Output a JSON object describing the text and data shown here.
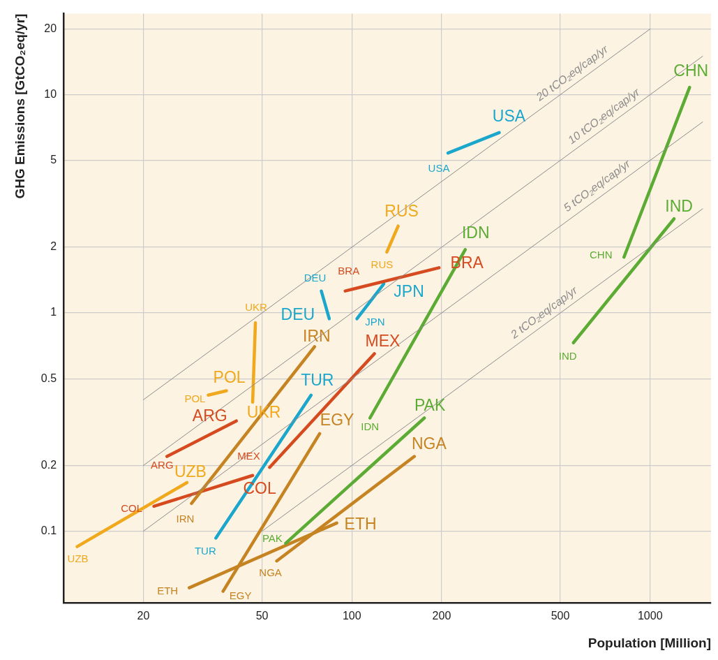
{
  "chart_data": {
    "type": "line",
    "xlabel": "Population [Million]",
    "ylabel": "GHG Emissions [GtCO₂eq/yr]",
    "log": "xy",
    "grid": true,
    "legend": false,
    "xlim": [
      10.8,
      1600
    ],
    "xticks": [
      20,
      50,
      100,
      200,
      500,
      1000
    ],
    "ylim": [
      0.047,
      23.5
    ],
    "yticks": [
      0.1,
      0.2,
      0.5,
      1,
      2,
      5,
      10,
      20
    ],
    "series": [
      {
        "color": "#8c8c8c",
        "x": [
          20,
          1000
        ],
        "values": [
          0.4,
          20
        ]
      },
      {
        "color": "#8c8c8c",
        "x": [
          20,
          1500
        ],
        "values": [
          0.2,
          15
        ]
      },
      {
        "color": "#8c8c8c",
        "x": [
          20,
          1500
        ],
        "values": [
          0.1,
          7.5
        ]
      },
      {
        "color": "#8c8c8c",
        "x": [
          50,
          1500
        ],
        "values": [
          0.1,
          3
        ]
      },
      {
        "name": "USA",
        "color": "#1ba6cc",
        "x": [
          210,
          312
        ],
        "values": [
          5.4,
          6.7
        ]
      },
      {
        "name": "CHN",
        "color": "#5bab34",
        "x": [
          817,
          1356
        ],
        "values": [
          1.8,
          10.8
        ]
      },
      {
        "name": "IND",
        "color": "#5bab34",
        "x": [
          553,
          1203
        ],
        "values": [
          0.73,
          2.7
        ]
      },
      {
        "name": "IDN",
        "color": "#5bab34",
        "x": [
          115,
          240
        ],
        "values": [
          0.33,
          1.95
        ]
      },
      {
        "name": "PAK",
        "color": "#5bab34",
        "x": [
          60,
          175
        ],
        "values": [
          0.088,
          0.33
        ]
      },
      {
        "name": "NGA",
        "color": "#c58322",
        "x": [
          56,
          162
        ],
        "values": [
          0.073,
          0.22
        ]
      },
      {
        "name": "ETH",
        "color": "#c58322",
        "x": [
          28.5,
          89
        ],
        "values": [
          0.055,
          0.109
        ]
      },
      {
        "name": "EGY",
        "color": "#c58322",
        "x": [
          37,
          78
        ],
        "values": [
          0.053,
          0.28
        ]
      },
      {
        "name": "IRN",
        "color": "#c58322",
        "x": [
          29,
          75
        ],
        "values": [
          0.134,
          0.7
        ]
      },
      {
        "name": "MEX",
        "color": "#d64a1f",
        "x": [
          53,
          119
        ],
        "values": [
          0.196,
          0.65
        ]
      },
      {
        "name": "BRA",
        "color": "#d64a1f",
        "x": [
          95,
          196
        ],
        "values": [
          1.26,
          1.61
        ]
      },
      {
        "name": "ARG",
        "color": "#d64a1f",
        "x": [
          24,
          41
        ],
        "values": [
          0.22,
          0.32
        ]
      },
      {
        "name": "COL",
        "color": "#d64a1f",
        "x": [
          21.7,
          46.5
        ],
        "values": [
          0.13,
          0.18
        ]
      },
      {
        "name": "JPN",
        "color": "#1ba6cc",
        "x": [
          104,
          128
        ],
        "values": [
          0.94,
          1.36
        ]
      },
      {
        "name": "DEU",
        "color": "#1ba6cc",
        "x": [
          79,
          84
        ],
        "values": [
          1.26,
          0.94
        ]
      },
      {
        "name": "TUR",
        "color": "#1ba6cc",
        "x": [
          35,
          73
        ],
        "values": [
          0.093,
          0.42
        ]
      },
      {
        "name": "RUS",
        "color": "#f0a81c",
        "x": [
          131,
          143
        ],
        "values": [
          1.9,
          2.5
        ]
      },
      {
        "name": "UKR",
        "color": "#f0a81c",
        "x": [
          47.5,
          46.5
        ],
        "values": [
          0.9,
          0.39
        ]
      },
      {
        "name": "POL",
        "color": "#f0a81c",
        "x": [
          33,
          38
        ],
        "values": [
          0.42,
          0.44
        ]
      },
      {
        "name": "UZB",
        "color": "#f0a81c",
        "x": [
          12,
          28
        ],
        "values": [
          0.085,
          0.167
        ]
      }
    ],
    "annotations": [
      {
        "text": "20 tCO₂eq/cap/yr",
        "x": 574,
        "y": 11.5
      },
      {
        "text": "10 tCO₂eq/cap/yr",
        "x": 733,
        "y": 7.3
      },
      {
        "text": "5 tCO₂eq/cap/yr",
        "x": 695,
        "y": 3.5
      },
      {
        "text": "2 tCO₂eq/cap/yr",
        "x": 462,
        "y": 0.92
      }
    ]
  }
}
